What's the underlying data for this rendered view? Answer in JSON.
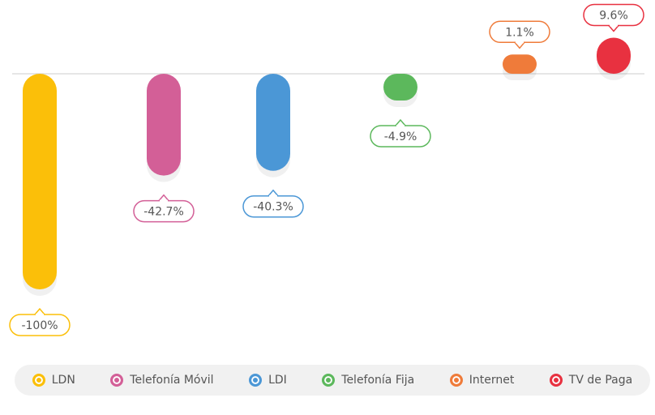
{
  "chart_data": {
    "type": "bar",
    "categories": [
      "LDN",
      "Telefonía Móvil",
      "LDI",
      "Telefonía Fija",
      "Internet",
      "TV de Paga"
    ],
    "values": [
      -100,
      -42.7,
      -40.3,
      -4.9,
      1.1,
      9.6
    ],
    "value_labels": [
      "-100%",
      "-42.7%",
      "-40.3%",
      "-4.9%",
      "1.1%",
      "9.6%"
    ],
    "colors": [
      "#fbbf09",
      "#d35f97",
      "#4b97d6",
      "#5cb85c",
      "#ef7b3a",
      "#e83140"
    ]
  }
}
